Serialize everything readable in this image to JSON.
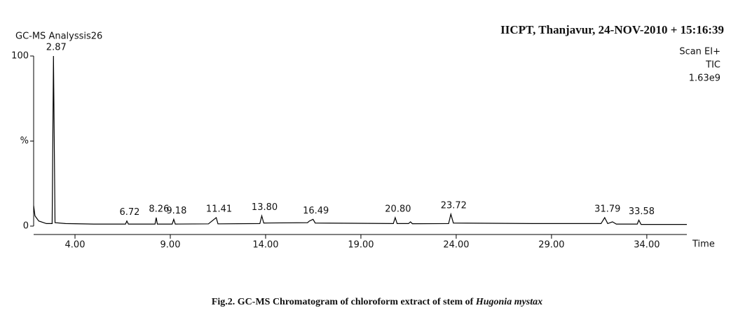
{
  "chart_data": {
    "type": "line",
    "title": "GC-MS Analyssis26",
    "header": "IICPT, Thanjavur,  24-NOV-2010 + 15:16:39",
    "info": [
      "Scan EI+",
      "TIC",
      "1.63e9"
    ],
    "xlabel": "Time",
    "caption": "Fig.2. GC-MS Chromatogram of chloroform extract of stem of",
    "caption_species": "Hugonia mystax",
    "color": "#000000",
    "x": [
      1.83,
      1.9,
      2.1,
      2.5,
      2.8,
      2.87,
      2.95,
      3.5,
      5,
      6.65,
      6.72,
      6.8,
      8.2,
      8.26,
      8.32,
      9.1,
      9.18,
      9.26,
      11.0,
      11.41,
      11.5,
      13.7,
      13.8,
      13.9,
      16.2,
      16.3,
      16.49,
      16.6,
      20.7,
      20.8,
      20.9,
      21.5,
      21.6,
      21.7,
      23.6,
      23.72,
      23.85,
      28,
      31.6,
      31.79,
      31.95,
      32.2,
      32.4,
      33.5,
      33.58,
      33.7,
      36.1
    ],
    "values": [
      12,
      6,
      3,
      1.5,
      1.5,
      100,
      2,
      1.5,
      1.2,
      1.2,
      3,
      1.2,
      1.2,
      5,
      1.2,
      1.2,
      4,
      1.2,
      1.3,
      5,
      1.3,
      1.5,
      6,
      1.8,
      2,
      3,
      4,
      1.8,
      1.5,
      5,
      1.5,
      1.5,
      2.5,
      1.4,
      1.5,
      7,
      1.8,
      1.5,
      1.5,
      5,
      1.5,
      2.5,
      1.2,
      1.2,
      3.5,
      1,
      1
    ],
    "peak_labels": [
      {
        "value": 2.87,
        "label": "2.87"
      },
      {
        "value": 6.72,
        "label": "6.72"
      },
      {
        "value": 8.26,
        "label": "8.26"
      },
      {
        "value": 9.18,
        "label": "9.18"
      },
      {
        "value": 11.41,
        "label": "11.41"
      },
      {
        "value": 13.8,
        "label": "13.80"
      },
      {
        "value": 16.49,
        "label": "16.49"
      },
      {
        "value": 20.8,
        "label": "20.80"
      },
      {
        "value": 23.72,
        "label": "23.72"
      },
      {
        "value": 31.79,
        "label": "31.79"
      },
      {
        "value": 33.58,
        "label": "33.58"
      }
    ],
    "xlim": [
      1.83,
      36.1
    ],
    "xticks": [
      {
        "value": 4,
        "label": "4.00"
      },
      {
        "value": 9,
        "label": "9.00"
      },
      {
        "value": 14,
        "label": "14.00"
      },
      {
        "value": 19,
        "label": "19.00"
      },
      {
        "value": 24,
        "label": "24.00"
      },
      {
        "value": 29,
        "label": "29.00"
      },
      {
        "value": 34,
        "label": "34.00"
      }
    ],
    "ylim": [
      0,
      100
    ],
    "yticks": [
      0,
      {
        "value": 50,
        "label": "%"
      },
      100
    ]
  }
}
